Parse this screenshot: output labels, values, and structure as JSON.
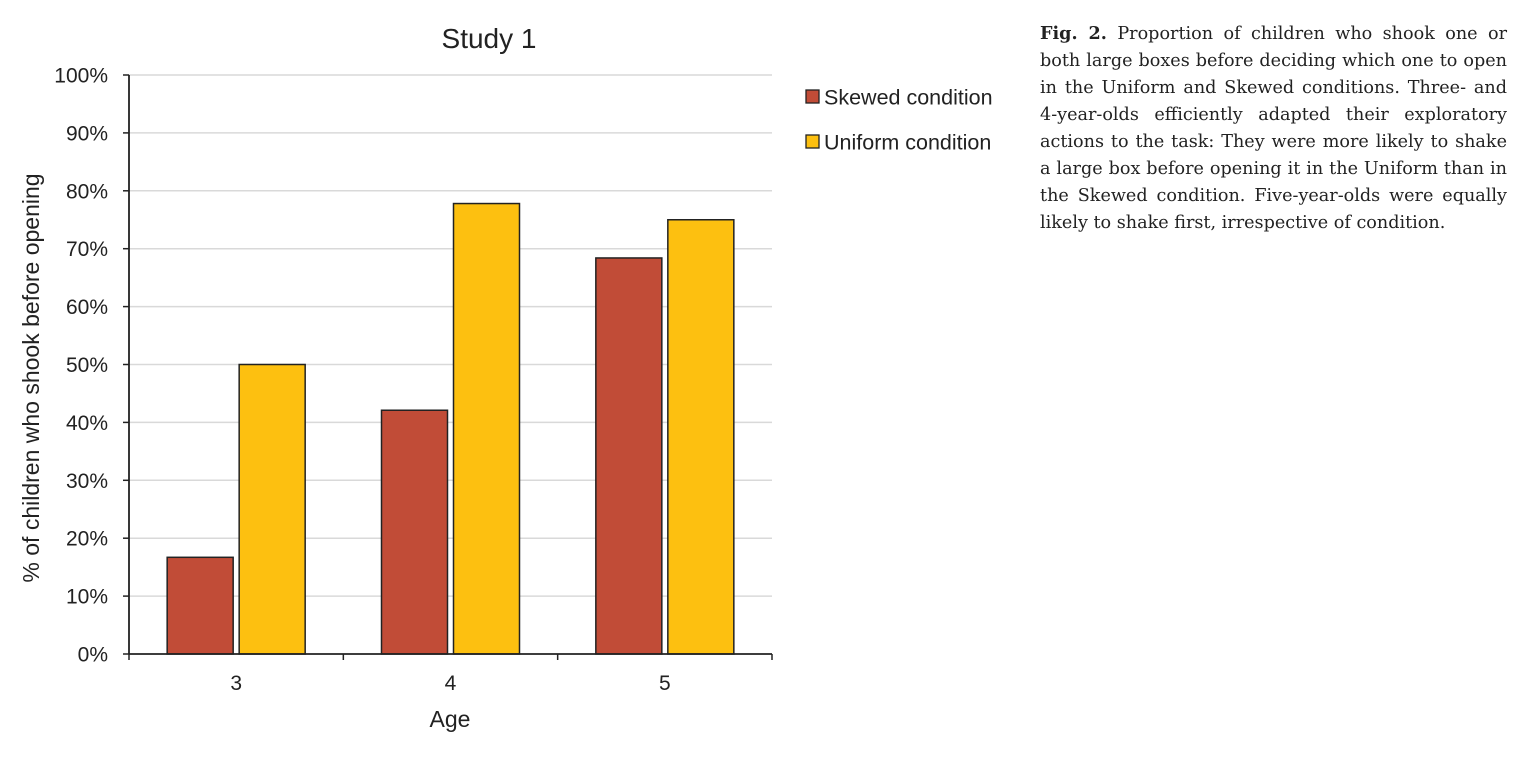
{
  "chart_data": {
    "type": "bar",
    "title": "Study 1",
    "xlabel": "Age",
    "ylabel": "% of children who shook before opening",
    "categories": [
      "3",
      "4",
      "5"
    ],
    "series": [
      {
        "name": "Skewed condition",
        "values": [
          16.7,
          42.1,
          68.4
        ],
        "color": "#c14c37"
      },
      {
        "name": "Uniform condition",
        "values": [
          50.0,
          77.8,
          75.0
        ],
        "color": "#fdc010"
      }
    ],
    "ylim": [
      0,
      100
    ],
    "yticks": [
      "0%",
      "10%",
      "20%",
      "30%",
      "40%",
      "50%",
      "60%",
      "70%",
      "80%",
      "90%",
      "100%"
    ],
    "grid": true,
    "legend": "right"
  },
  "caption": {
    "label": "Fig. 2.",
    "text": "Proportion of children who shook one or both large boxes before deciding which one to open in the Uniform and Skewed conditions. Three- and 4-year-olds efficiently adapted their exploratory actions to the task: They were more likely to shake a large box before opening it in the Uniform than in the Skewed condition. Five-year-olds were equally likely to shake first, irrespective of condition."
  }
}
